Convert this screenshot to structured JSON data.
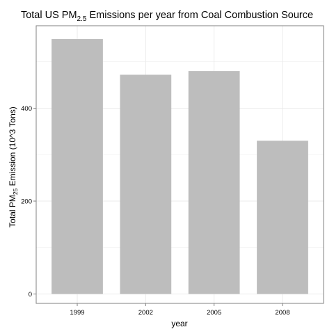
{
  "chart_data": {
    "type": "bar",
    "title": {
      "pre": "Total US PM",
      "sub": "2.5",
      "post": " Emissions per year from Coal Combustion Source"
    },
    "ylabel": {
      "pre": "Total PM",
      "sub": "25",
      "post": " Emission (10^3 Tons)"
    },
    "xlabel": "year",
    "categories": [
      "1999",
      "2002",
      "2005",
      "2008"
    ],
    "values": [
      549,
      472,
      480,
      330
    ],
    "ylim": [
      0,
      600
    ],
    "yticks": [
      0,
      200,
      400
    ],
    "grid": true,
    "colors": {
      "bar": "#bdbdbd",
      "grid": "#ebebeb",
      "panel_border": "#808080",
      "background": "#ffffff"
    }
  }
}
